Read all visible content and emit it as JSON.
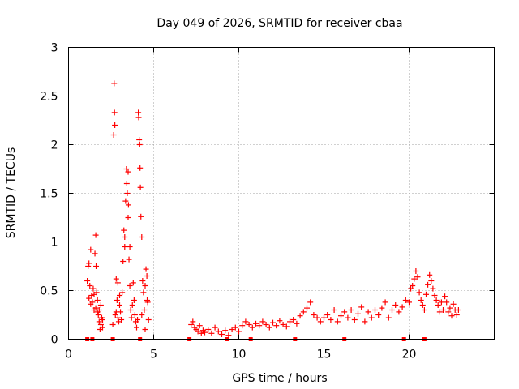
{
  "chart_data": {
    "type": "scatter",
    "title": "Day 049 of 2026, SRMTID for receiver cbaa",
    "xlabel": "GPS time / hours",
    "ylabel": "SRMTID / TECUs",
    "xlim": [
      0,
      25
    ],
    "ylim": [
      0,
      3
    ],
    "xticks": [
      0,
      5,
      10,
      15,
      20
    ],
    "xtick_labels": [
      "0",
      "5",
      "10",
      "15",
      "20"
    ],
    "yticks": [
      0,
      0.5,
      1,
      1.5,
      2,
      2.5,
      3
    ],
    "ytick_labels": [
      "0",
      "0.5",
      "1",
      "1.5",
      "2",
      "2.5",
      "3"
    ],
    "grid": true,
    "marker": "plus",
    "color": "#ff0000",
    "series": [
      {
        "name": "SRMTID",
        "points": [
          [
            1.1,
            0.6
          ],
          [
            1.15,
            0.75
          ],
          [
            1.2,
            0.78
          ],
          [
            1.25,
            0.55
          ],
          [
            1.3,
            0.92
          ],
          [
            1.35,
            0.45
          ],
          [
            1.4,
            0.38
          ],
          [
            1.45,
            0.52
          ],
          [
            1.5,
            0.3
          ],
          [
            1.55,
            0.88
          ],
          [
            1.6,
            1.07
          ],
          [
            1.62,
            0.75
          ],
          [
            1.65,
            0.48
          ],
          [
            1.7,
            0.4
          ],
          [
            1.75,
            0.25
          ],
          [
            1.8,
            0.18
          ],
          [
            1.85,
            0.1
          ],
          [
            1.9,
            0.35
          ],
          [
            1.95,
            0.22
          ],
          [
            2.0,
            0.12
          ],
          [
            1.2,
            0.42
          ],
          [
            1.3,
            0.36
          ],
          [
            1.5,
            0.46
          ],
          [
            1.6,
            0.32
          ],
          [
            1.7,
            0.28
          ],
          [
            1.8,
            0.3
          ],
          [
            1.9,
            0.15
          ],
          [
            2.0,
            0.2
          ],
          [
            2.6,
            0.15
          ],
          [
            2.65,
            2.1
          ],
          [
            2.68,
            2.63
          ],
          [
            2.7,
            2.33
          ],
          [
            2.72,
            2.2
          ],
          [
            2.75,
            0.25
          ],
          [
            2.8,
            0.62
          ],
          [
            2.85,
            0.4
          ],
          [
            2.9,
            0.22
          ],
          [
            2.95,
            0.18
          ],
          [
            3.0,
            0.35
          ],
          [
            3.05,
            0.28
          ],
          [
            3.1,
            0.2
          ],
          [
            3.15,
            0.48
          ],
          [
            3.2,
            0.8
          ],
          [
            3.25,
            1.12
          ],
          [
            3.3,
            1.05
          ],
          [
            3.35,
            1.42
          ],
          [
            3.4,
            1.75
          ],
          [
            3.42,
            1.6
          ],
          [
            3.45,
            1.5
          ],
          [
            3.5,
            1.72
          ],
          [
            3.52,
            1.38
          ],
          [
            3.55,
            0.82
          ],
          [
            3.6,
            0.55
          ],
          [
            3.65,
            0.3
          ],
          [
            3.7,
            0.22
          ],
          [
            3.75,
            0.35
          ],
          [
            3.8,
            0.58
          ],
          [
            3.85,
            0.4
          ],
          [
            3.9,
            0.25
          ],
          [
            3.95,
            0.18
          ],
          [
            4.0,
            0.12
          ],
          [
            4.05,
            0.2
          ],
          [
            4.1,
            2.33
          ],
          [
            4.12,
            2.28
          ],
          [
            4.15,
            2.05
          ],
          [
            4.18,
            2.0
          ],
          [
            4.2,
            1.76
          ],
          [
            4.22,
            1.56
          ],
          [
            4.25,
            1.26
          ],
          [
            4.3,
            1.05
          ],
          [
            4.35,
            0.6
          ],
          [
            4.4,
            0.48
          ],
          [
            4.45,
            0.3
          ],
          [
            4.5,
            0.55
          ],
          [
            4.55,
            0.72
          ],
          [
            4.6,
            0.65
          ],
          [
            4.62,
            0.4
          ],
          [
            4.65,
            0.38
          ],
          [
            4.7,
            0.2
          ],
          [
            3.3,
            0.95
          ],
          [
            3.5,
            1.25
          ],
          [
            3.6,
            0.95
          ],
          [
            2.9,
            0.58
          ],
          [
            3.0,
            0.45
          ],
          [
            2.8,
            0.28
          ],
          [
            4.3,
            0.25
          ],
          [
            4.5,
            0.1
          ],
          [
            7.2,
            0.15
          ],
          [
            7.3,
            0.18
          ],
          [
            7.4,
            0.12
          ],
          [
            7.5,
            0.1
          ],
          [
            7.6,
            0.08
          ],
          [
            7.7,
            0.14
          ],
          [
            7.8,
            0.06
          ],
          [
            7.9,
            0.09
          ],
          [
            8.0,
            0.07
          ],
          [
            8.2,
            0.1
          ],
          [
            8.4,
            0.06
          ],
          [
            8.6,
            0.12
          ],
          [
            8.8,
            0.08
          ],
          [
            9.0,
            0.05
          ],
          [
            9.2,
            0.09
          ],
          [
            9.4,
            0.04
          ],
          [
            9.6,
            0.1
          ],
          [
            9.8,
            0.12
          ],
          [
            10.0,
            0.08
          ],
          [
            10.2,
            0.14
          ],
          [
            10.4,
            0.18
          ],
          [
            10.6,
            0.15
          ],
          [
            10.8,
            0.12
          ],
          [
            11.0,
            0.16
          ],
          [
            11.2,
            0.14
          ],
          [
            11.4,
            0.18
          ],
          [
            11.6,
            0.15
          ],
          [
            11.8,
            0.12
          ],
          [
            12.0,
            0.17
          ],
          [
            12.2,
            0.14
          ],
          [
            12.4,
            0.19
          ],
          [
            12.6,
            0.15
          ],
          [
            12.8,
            0.13
          ],
          [
            13.0,
            0.18
          ],
          [
            13.2,
            0.2
          ],
          [
            13.4,
            0.16
          ],
          [
            13.6,
            0.24
          ],
          [
            13.8,
            0.28
          ],
          [
            14.0,
            0.32
          ],
          [
            14.2,
            0.38
          ],
          [
            14.4,
            0.25
          ],
          [
            14.6,
            0.22
          ],
          [
            14.8,
            0.18
          ],
          [
            15.0,
            0.22
          ],
          [
            15.2,
            0.25
          ],
          [
            15.4,
            0.2
          ],
          [
            15.6,
            0.3
          ],
          [
            15.8,
            0.18
          ],
          [
            16.0,
            0.24
          ],
          [
            16.2,
            0.28
          ],
          [
            16.4,
            0.22
          ],
          [
            16.6,
            0.3
          ],
          [
            16.8,
            0.2
          ],
          [
            17.0,
            0.26
          ],
          [
            17.2,
            0.33
          ],
          [
            17.4,
            0.18
          ],
          [
            17.6,
            0.28
          ],
          [
            17.8,
            0.22
          ],
          [
            18.0,
            0.3
          ],
          [
            18.2,
            0.25
          ],
          [
            18.4,
            0.32
          ],
          [
            18.6,
            0.38
          ],
          [
            18.8,
            0.22
          ],
          [
            19.0,
            0.3
          ],
          [
            19.2,
            0.35
          ],
          [
            19.4,
            0.28
          ],
          [
            19.6,
            0.33
          ],
          [
            19.8,
            0.4
          ],
          [
            20.0,
            0.38
          ],
          [
            20.1,
            0.52
          ],
          [
            20.2,
            0.55
          ],
          [
            20.3,
            0.62
          ],
          [
            20.4,
            0.7
          ],
          [
            20.5,
            0.64
          ],
          [
            20.6,
            0.48
          ],
          [
            20.7,
            0.4
          ],
          [
            20.8,
            0.35
          ],
          [
            20.9,
            0.3
          ],
          [
            21.0,
            0.46
          ],
          [
            21.1,
            0.56
          ],
          [
            21.2,
            0.66
          ],
          [
            21.3,
            0.6
          ],
          [
            21.4,
            0.52
          ],
          [
            21.5,
            0.45
          ],
          [
            21.6,
            0.4
          ],
          [
            21.7,
            0.35
          ],
          [
            21.8,
            0.28
          ],
          [
            21.9,
            0.38
          ],
          [
            22.0,
            0.3
          ],
          [
            22.1,
            0.44
          ],
          [
            22.2,
            0.38
          ],
          [
            22.3,
            0.28
          ],
          [
            22.4,
            0.32
          ],
          [
            22.5,
            0.24
          ],
          [
            22.6,
            0.36
          ],
          [
            22.7,
            0.3
          ],
          [
            22.8,
            0.25
          ],
          [
            22.9,
            0.3
          ]
        ],
        "zero_points": [
          1.1,
          1.4,
          2.6,
          4.2,
          7.1,
          9.3,
          10.7,
          13.3,
          16.2,
          19.7,
          20.9
        ]
      }
    ]
  }
}
